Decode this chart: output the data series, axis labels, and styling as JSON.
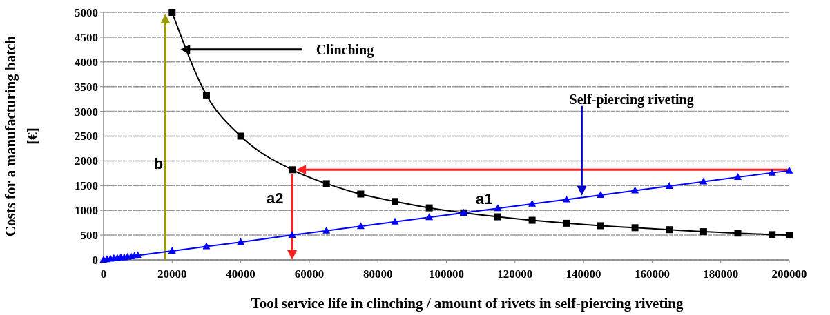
{
  "chart_data": {
    "type": "line",
    "xlabel": "Tool service life in clinching / amount of rivets in self-piercing riveting",
    "ylabel": "Costs for a manufacturing batch\n[€]",
    "xlim": [
      0,
      200000
    ],
    "xticks": [
      0,
      20000,
      40000,
      60000,
      80000,
      100000,
      120000,
      140000,
      160000,
      180000,
      200000
    ],
    "ylim": [
      0,
      5000
    ],
    "yticks": [
      0,
      500,
      1000,
      1500,
      2000,
      2500,
      3000,
      3500,
      4000,
      4500,
      5000
    ],
    "grid": "y",
    "series": [
      {
        "color": "#000000",
        "marker": "square",
        "x": [
          20000,
          30000,
          40000,
          55000,
          65000,
          75000,
          85000,
          95000,
          105000,
          115000,
          125000,
          135000,
          145000,
          155000,
          165000,
          175000,
          185000,
          195000,
          200000
        ],
        "values": [
          5000,
          3330,
          2500,
          1820,
          1540,
          1330,
          1180,
          1050,
          950,
          870,
          800,
          740,
          690,
          650,
          610,
          570,
          540,
          510,
          500
        ]
      },
      {
        "color": "#0000ff",
        "marker": "triangle",
        "x": [
          0,
          1000,
          2000,
          3000,
          4000,
          5000,
          6000,
          7000,
          8000,
          9000,
          10000,
          20000,
          30000,
          40000,
          55000,
          65000,
          75000,
          85000,
          95000,
          105000,
          115000,
          125000,
          135000,
          145000,
          155000,
          165000,
          175000,
          185000,
          195000,
          200000
        ],
        "values": [
          0,
          10,
          20,
          30,
          40,
          50,
          50,
          60,
          70,
          80,
          90,
          180,
          270,
          360,
          500,
          590,
          680,
          770,
          860,
          950,
          1040,
          1130,
          1220,
          1310,
          1400,
          1490,
          1580,
          1670,
          1760,
          1800
        ]
      }
    ],
    "annotations": [
      "Clinching",
      "Self-piercing riveting",
      "a1",
      "a2",
      "b"
    ]
  }
}
